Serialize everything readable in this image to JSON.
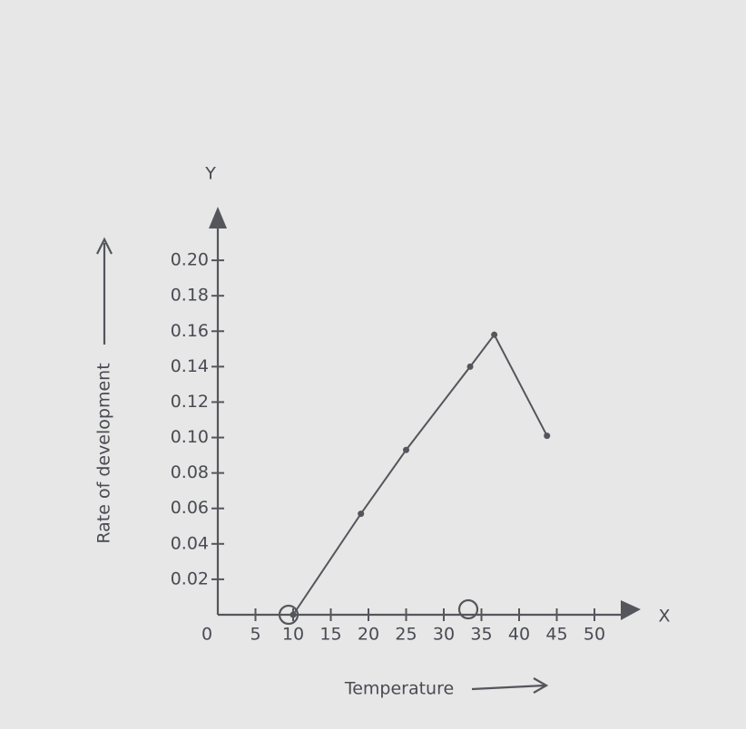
{
  "chart_data": {
    "type": "line",
    "x_label": "Temperature",
    "y_label": "Rate of development",
    "x_axis_letter": "X",
    "y_axis_letter": "Y",
    "x": [
      10,
      19,
      25,
      33.5,
      36.7,
      43.7
    ],
    "series": [
      {
        "color": "#55555c",
        "values": [
          0,
          0.057,
          0.093,
          0.14,
          0.158,
          0.101
        ]
      }
    ],
    "xlim": [
      0,
      55
    ],
    "ylim": [
      0,
      0.22
    ],
    "xticks": [
      0,
      5,
      10,
      15,
      20,
      25,
      30,
      35,
      40,
      45,
      50
    ],
    "yticks": [
      0.02,
      0.04,
      0.06,
      0.08,
      {
        "value": 0.1,
        "label": "0.10"
      },
      0.12,
      0.14,
      0.16,
      0.18,
      {
        "value": 0.2,
        "label": "0.20"
      }
    ]
  }
}
